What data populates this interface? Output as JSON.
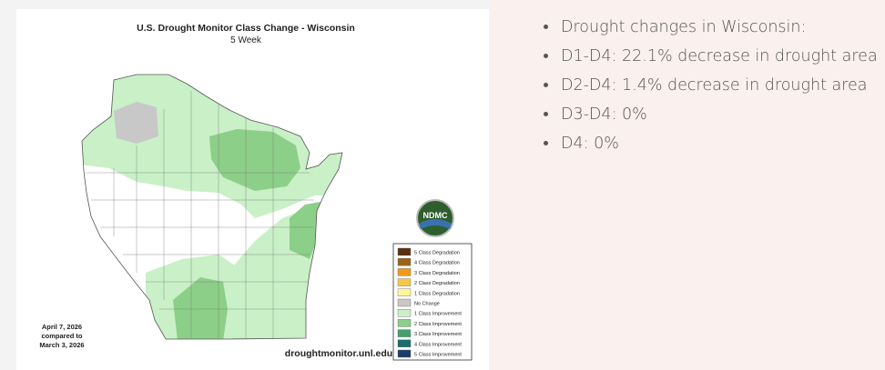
{
  "map": {
    "title": "U.S. Drought Monitor Class Change - Wisconsin",
    "subtitle": "5 Week",
    "date_lines": [
      "April 7, 2026",
      "compared to",
      "March 3, 2026"
    ],
    "source": "droughtmonitor.unl.edu",
    "logo": "NDMC",
    "legend": [
      {
        "label": "5 Class Degradation",
        "color": "#5a3010"
      },
      {
        "label": "4 Class Degradation",
        "color": "#9a6418"
      },
      {
        "label": "3 Class Degradation",
        "color": "#ee9a1c"
      },
      {
        "label": "2 Class Degradation",
        "color": "#f5c84a"
      },
      {
        "label": "1 Class Degradation",
        "color": "#fff59c"
      },
      {
        "label": "No Change",
        "color": "#c8c8c8"
      },
      {
        "label": "1 Class Improvement",
        "color": "#c9f0c6"
      },
      {
        "label": "2 Class Improvement",
        "color": "#8ccf88"
      },
      {
        "label": "3 Class Improvement",
        "color": "#45a06e"
      },
      {
        "label": "4 Class Improvement",
        "color": "#1a6c6c"
      },
      {
        "label": "5 Class Improvement",
        "color": "#1b3d6b"
      }
    ]
  },
  "notes": {
    "items": [
      "Drought changes in Wisconsin:",
      "D1-D4: 22.1% decrease in drought area",
      "D2-D4: 1.4% decrease in drought area",
      "D3-D4: 0%",
      "D4: 0%"
    ]
  }
}
